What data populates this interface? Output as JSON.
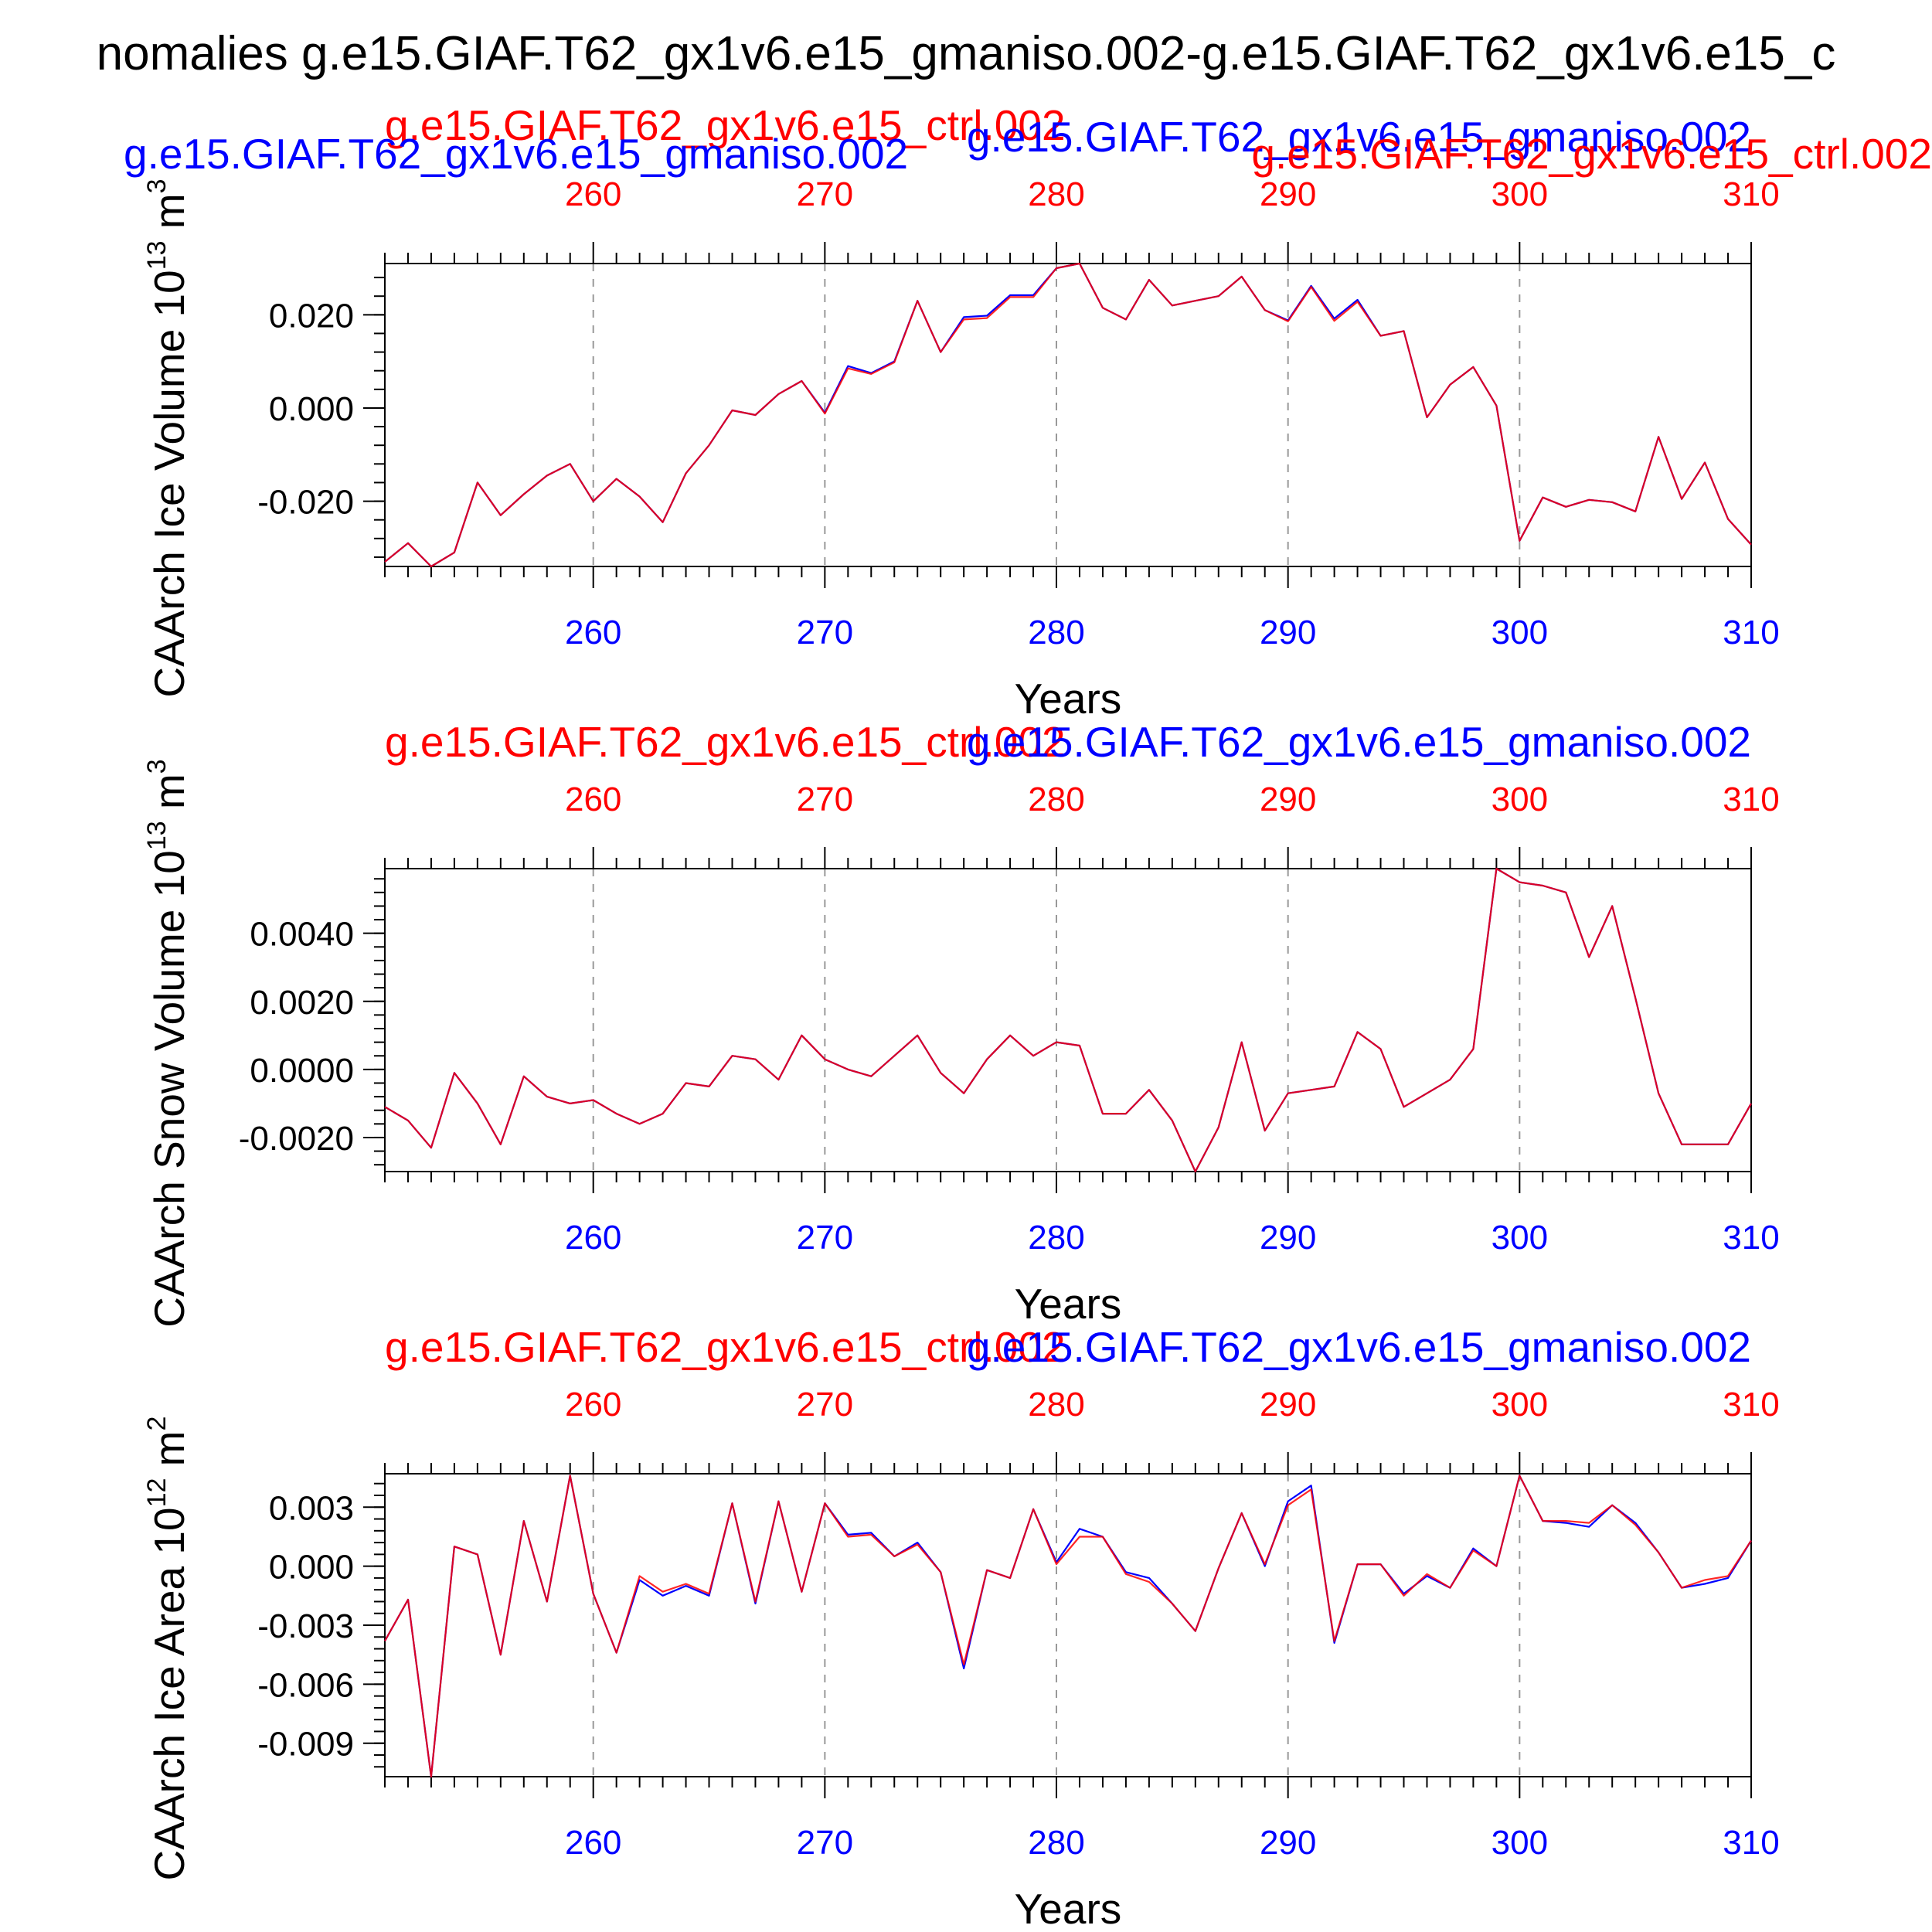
{
  "figure": {
    "main_title": "nomalies g.e15.GIAF.T62_gx1v6.e15_gmaniso.002-g.e15.GIAF.T62_gx1v6.e15_c",
    "colors": {
      "series_a": "#0000ff",
      "series_b": "#ff0000",
      "axis": "#000000",
      "grid": "#999999"
    }
  },
  "chart_data": [
    {
      "type": "line",
      "ylabel": "CAArch Ice Volume 10^13 m^3",
      "ylabel_main": "CAArch Ice Volume 10",
      "ylabel_exp1": "13",
      "ylabel_unit": " m",
      "ylabel_exp2": "3",
      "xlabel": "Years",
      "xlim": [
        251,
        310
      ],
      "ylim": [
        -0.034,
        0.031
      ],
      "xticks": [
        260,
        270,
        280,
        290,
        300,
        310
      ],
      "xtick_labels": [
        "260",
        "270",
        "280",
        "290",
        "300",
        "310"
      ],
      "yticks": [
        -0.02,
        0.0,
        0.02
      ],
      "ytick_labels": [
        "-0.020",
        "0.000",
        "0.020"
      ],
      "grid": "vertical dashed at major ticks",
      "series": [
        {
          "name": "g.e15.GIAF.T62_gx1v6.e15_gmaniso.002",
          "color": "#0000ff",
          "x": [
            251,
            252,
            253,
            254,
            255,
            256,
            257,
            258,
            259,
            260,
            261,
            262,
            263,
            264,
            265,
            266,
            267,
            268,
            269,
            270,
            271,
            272,
            273,
            274,
            275,
            276,
            277,
            278,
            279,
            280,
            281,
            282,
            283,
            284,
            285,
            286,
            287,
            288,
            289,
            290,
            291,
            292,
            293,
            294,
            295,
            296,
            297,
            298,
            299,
            300,
            301,
            302,
            303,
            304,
            305,
            306,
            307,
            308,
            309,
            310
          ],
          "values": [
            -0.033,
            -0.029,
            -0.034,
            -0.031,
            -0.016,
            -0.023,
            -0.0185,
            -0.0145,
            -0.012,
            -0.02,
            -0.0152,
            -0.019,
            -0.0245,
            -0.014,
            -0.008,
            -0.0005,
            -0.0015,
            0.003,
            0.0058,
            -0.001,
            0.009,
            0.0075,
            0.01,
            0.023,
            0.012,
            0.0195,
            0.0198,
            0.0242,
            0.0242,
            0.03,
            0.031,
            0.0215,
            0.019,
            0.0275,
            0.022,
            0.023,
            0.024,
            0.0282,
            0.021,
            0.0188,
            0.0262,
            0.0192,
            0.0232,
            0.0155,
            0.0165,
            -0.002,
            0.005,
            0.0088,
            0.0005,
            -0.0285,
            -0.0192,
            -0.0212,
            -0.0197,
            -0.0202,
            -0.0222,
            -0.0062,
            -0.0195,
            -0.0117,
            -0.0238,
            -0.0293
          ]
        },
        {
          "name": "g.e15.GIAF.T62_gx1v6.e15_ctrl.002",
          "color": "#ff0000",
          "x": [
            251,
            252,
            253,
            254,
            255,
            256,
            257,
            258,
            259,
            260,
            261,
            262,
            263,
            264,
            265,
            266,
            267,
            268,
            269,
            270,
            271,
            272,
            273,
            274,
            275,
            276,
            277,
            278,
            279,
            280,
            281,
            282,
            283,
            284,
            285,
            286,
            287,
            288,
            289,
            290,
            291,
            292,
            293,
            294,
            295,
            296,
            297,
            298,
            299,
            300,
            301,
            302,
            303,
            304,
            305,
            306,
            307,
            308,
            309,
            310
          ],
          "values": [
            -0.033,
            -0.029,
            -0.034,
            -0.031,
            -0.016,
            -0.023,
            -0.0185,
            -0.0145,
            -0.012,
            -0.02,
            -0.0152,
            -0.019,
            -0.0245,
            -0.014,
            -0.008,
            -0.0005,
            -0.0015,
            0.003,
            0.0058,
            -0.0012,
            0.0085,
            0.0073,
            0.0098,
            0.023,
            0.012,
            0.019,
            0.0193,
            0.0238,
            0.0238,
            0.03,
            0.031,
            0.0215,
            0.019,
            0.0275,
            0.022,
            0.023,
            0.024,
            0.0282,
            0.021,
            0.0186,
            0.026,
            0.0187,
            0.0228,
            0.0155,
            0.0165,
            -0.002,
            0.005,
            0.0088,
            0.0005,
            -0.0285,
            -0.0192,
            -0.0212,
            -0.0197,
            -0.0202,
            -0.0222,
            -0.0062,
            -0.0195,
            -0.0117,
            -0.0238,
            -0.0293
          ]
        }
      ]
    },
    {
      "type": "line",
      "ylabel": "CAArch Snow Volume 10^13 m^3",
      "ylabel_main": "CAArch Snow Volume 10",
      "ylabel_exp1": "13",
      "ylabel_unit": " m",
      "ylabel_exp2": "3",
      "xlabel": "Years",
      "xlim": [
        251,
        310
      ],
      "ylim": [
        -0.003,
        0.0059
      ],
      "xticks": [
        260,
        270,
        280,
        290,
        300,
        310
      ],
      "xtick_labels": [
        "260",
        "270",
        "280",
        "290",
        "300",
        "310"
      ],
      "yticks": [
        -0.002,
        0.0,
        0.002,
        0.004
      ],
      "ytick_labels": [
        "-0.0020",
        "0.0000",
        "0.0020",
        "0.0040"
      ],
      "grid": "vertical dashed at major ticks",
      "series": [
        {
          "name": "g.e15.GIAF.T62_gx1v6.e15_gmaniso.002",
          "color": "#0000ff",
          "x": [
            251,
            252,
            253,
            254,
            255,
            256,
            257,
            258,
            259,
            260,
            261,
            262,
            263,
            264,
            265,
            266,
            267,
            268,
            269,
            270,
            271,
            272,
            273,
            274,
            275,
            276,
            277,
            278,
            279,
            280,
            281,
            282,
            283,
            284,
            285,
            286,
            287,
            288,
            289,
            290,
            291,
            292,
            293,
            294,
            295,
            296,
            297,
            298,
            299,
            300,
            301,
            302,
            303,
            304,
            305,
            306,
            307,
            308,
            309,
            310
          ],
          "values": [
            -0.0011,
            -0.0015,
            -0.0023,
            -0.0001,
            -0.001,
            -0.0022,
            -0.0002,
            -0.0008,
            -0.001,
            -0.0009,
            -0.0013,
            -0.0016,
            -0.0013,
            -0.0004,
            -0.0005,
            0.0004,
            0.0003,
            -0.0003,
            0.001,
            0.0003,
            0.0,
            -0.0002,
            0.0004,
            0.001,
            -0.0001,
            -0.0007,
            0.0003,
            0.001,
            0.0004,
            0.0008,
            0.0007,
            -0.0013,
            -0.0013,
            -0.0006,
            -0.0015,
            -0.003,
            -0.0017,
            0.0008,
            -0.0018,
            -0.0007,
            -0.0006,
            -0.0005,
            0.0011,
            0.0006,
            -0.0011,
            -0.0007,
            -0.0003,
            0.0006,
            0.0059,
            0.0055,
            0.0054,
            0.0052,
            0.0033,
            0.0048,
            0.0021,
            -0.0007,
            -0.0022,
            -0.0022,
            -0.0022,
            -0.001
          ]
        },
        {
          "name": "g.e15.GIAF.T62_gx1v6.e15_ctrl.002",
          "color": "#ff0000",
          "x": [
            251,
            252,
            253,
            254,
            255,
            256,
            257,
            258,
            259,
            260,
            261,
            262,
            263,
            264,
            265,
            266,
            267,
            268,
            269,
            270,
            271,
            272,
            273,
            274,
            275,
            276,
            277,
            278,
            279,
            280,
            281,
            282,
            283,
            284,
            285,
            286,
            287,
            288,
            289,
            290,
            291,
            292,
            293,
            294,
            295,
            296,
            297,
            298,
            299,
            300,
            301,
            302,
            303,
            304,
            305,
            306,
            307,
            308,
            309,
            310
          ],
          "values": [
            -0.0011,
            -0.0015,
            -0.0023,
            -0.0001,
            -0.001,
            -0.0022,
            -0.0002,
            -0.0008,
            -0.001,
            -0.0009,
            -0.0013,
            -0.0016,
            -0.0013,
            -0.0004,
            -0.0005,
            0.0004,
            0.0003,
            -0.0003,
            0.001,
            0.0003,
            0.0,
            -0.0002,
            0.0004,
            0.001,
            -0.0001,
            -0.0007,
            0.0003,
            0.001,
            0.0004,
            0.0008,
            0.0007,
            -0.0013,
            -0.0013,
            -0.0006,
            -0.0015,
            -0.003,
            -0.0017,
            0.0008,
            -0.0018,
            -0.0007,
            -0.0006,
            -0.0005,
            0.0011,
            0.0006,
            -0.0011,
            -0.0007,
            -0.0003,
            0.0006,
            0.0059,
            0.0055,
            0.0054,
            0.0052,
            0.0033,
            0.0048,
            0.0021,
            -0.0007,
            -0.0022,
            -0.0022,
            -0.0022,
            -0.001
          ]
        }
      ]
    },
    {
      "type": "line",
      "ylabel": "CAArch Ice Area 10^12 m^2",
      "ylabel_main": "CAArch Ice Area 10",
      "ylabel_exp1": "12",
      "ylabel_unit": " m",
      "ylabel_exp2": "2",
      "xlabel": "Years",
      "xlim": [
        251,
        310
      ],
      "ylim": [
        -0.0107,
        0.0047
      ],
      "xticks": [
        260,
        270,
        280,
        290,
        300,
        310
      ],
      "xtick_labels": [
        "260",
        "270",
        "280",
        "290",
        "300",
        "310"
      ],
      "yticks": [
        -0.009,
        -0.006,
        -0.003,
        0.0,
        0.003
      ],
      "ytick_labels": [
        "-0.009",
        "-0.006",
        "-0.003",
        "0.000",
        "0.003"
      ],
      "grid": "vertical dashed at major ticks",
      "series": [
        {
          "name": "g.e15.GIAF.T62_gx1v6.e15_gmaniso.002",
          "color": "#0000ff",
          "x": [
            251,
            252,
            253,
            254,
            255,
            256,
            257,
            258,
            259,
            260,
            261,
            262,
            263,
            264,
            265,
            266,
            267,
            268,
            269,
            270,
            271,
            272,
            273,
            274,
            275,
            276,
            277,
            278,
            279,
            280,
            281,
            282,
            283,
            284,
            285,
            286,
            287,
            288,
            289,
            290,
            291,
            292,
            293,
            294,
            295,
            296,
            297,
            298,
            299,
            300,
            301,
            302,
            303,
            304,
            305,
            306,
            307,
            308,
            309,
            310
          ],
          "values": [
            -0.0038,
            -0.0017,
            -0.0107,
            0.001,
            0.0006,
            -0.0045,
            0.0023,
            -0.0018,
            0.0046,
            -0.0014,
            -0.0044,
            -0.0007,
            -0.0015,
            -0.001,
            -0.0015,
            0.0032,
            -0.0019,
            0.0033,
            -0.0013,
            0.0032,
            0.0016,
            0.0017,
            0.0005,
            0.0012,
            -0.0003,
            -0.0052,
            -0.0002,
            -0.0006,
            0.0029,
            0.0002,
            0.0019,
            0.0015,
            -0.0003,
            -0.0006,
            -0.0019,
            -0.0033,
            -0.0001,
            0.0027,
            0.0,
            0.0033,
            0.0041,
            -0.0039,
            0.0001,
            0.0001,
            -0.0014,
            -0.0005,
            -0.0011,
            0.0009,
            0.0,
            0.0046,
            0.0023,
            0.0022,
            0.002,
            0.0031,
            0.0022,
            0.0007,
            -0.0011,
            -0.0009,
            -0.0006,
            0.0013
          ]
        },
        {
          "name": "g.e15.GIAF.T62_gx1v6.e15_ctrl.002",
          "color": "#ff0000",
          "x": [
            251,
            252,
            253,
            254,
            255,
            256,
            257,
            258,
            259,
            260,
            261,
            262,
            263,
            264,
            265,
            266,
            267,
            268,
            269,
            270,
            271,
            272,
            273,
            274,
            275,
            276,
            277,
            278,
            279,
            280,
            281,
            282,
            283,
            284,
            285,
            286,
            287,
            288,
            289,
            290,
            291,
            292,
            293,
            294,
            295,
            296,
            297,
            298,
            299,
            300,
            301,
            302,
            303,
            304,
            305,
            306,
            307,
            308,
            309,
            310
          ],
          "values": [
            -0.0038,
            -0.0017,
            -0.0107,
            0.001,
            0.0006,
            -0.0045,
            0.0023,
            -0.0018,
            0.0046,
            -0.0014,
            -0.0044,
            -0.0005,
            -0.0013,
            -0.0009,
            -0.0014,
            0.0032,
            -0.0018,
            0.0033,
            -0.0013,
            0.0032,
            0.0015,
            0.0016,
            0.0005,
            0.0011,
            -0.0003,
            -0.005,
            -0.0002,
            -0.0006,
            0.0029,
            0.0001,
            0.0015,
            0.0015,
            -0.0004,
            -0.0008,
            -0.0019,
            -0.0033,
            -0.0001,
            0.0027,
            0.0001,
            0.0031,
            0.0039,
            -0.0038,
            0.0001,
            0.0001,
            -0.0015,
            -0.0004,
            -0.0011,
            0.0008,
            0.0,
            0.0046,
            0.0023,
            0.0023,
            0.0022,
            0.0031,
            0.0021,
            0.0007,
            -0.0011,
            -0.0007,
            -0.0005,
            0.0013
          ]
        }
      ]
    }
  ]
}
